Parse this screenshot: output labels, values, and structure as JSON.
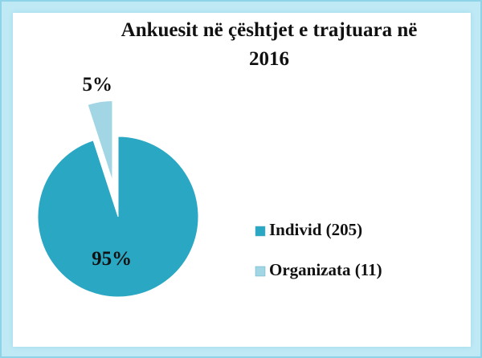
{
  "chart_data": {
    "type": "pie",
    "title": "Ankuesit në çështjet e trajtuara në 2016",
    "categories": [
      "Individ (205)",
      "Organizata (11)"
    ],
    "values": [
      95,
      5
    ],
    "value_labels": [
      "95%",
      "5%"
    ],
    "colors": [
      "#2aa7c3",
      "#a3d6e5"
    ],
    "legend": "right"
  }
}
